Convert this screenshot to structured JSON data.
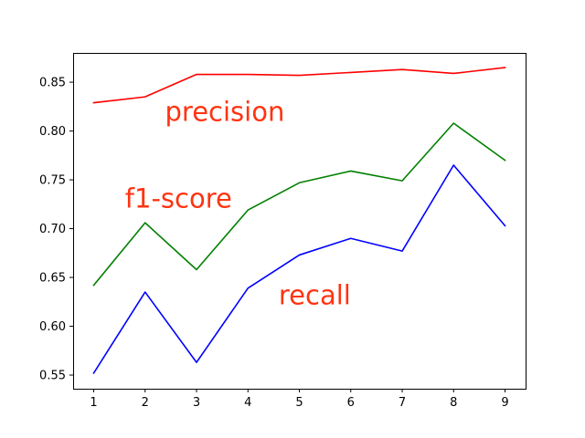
{
  "chart_data": {
    "type": "line",
    "title": "",
    "xlabel": "",
    "ylabel": "",
    "x": [
      1,
      2,
      3,
      4,
      5,
      6,
      7,
      8,
      9
    ],
    "xlim": [
      0.6,
      9.4
    ],
    "ylim": [
      0.536,
      0.88
    ],
    "xticks": [
      1,
      2,
      3,
      4,
      5,
      6,
      7,
      8,
      9
    ],
    "xtick_labels": [
      "1",
      "2",
      "3",
      "4",
      "5",
      "6",
      "7",
      "8",
      "9"
    ],
    "yticks": [
      0.55,
      0.6,
      0.65,
      0.7,
      0.75,
      0.8,
      0.85
    ],
    "ytick_labels": [
      "0.55",
      "0.60",
      "0.65",
      "0.70",
      "0.75",
      "0.80",
      "0.85"
    ],
    "grid": false,
    "legend": "none",
    "series": [
      {
        "color": "#ff0000",
        "values": [
          0.829,
          0.835,
          0.858,
          0.858,
          0.857,
          0.86,
          0.863,
          0.859,
          0.865
        ]
      },
      {
        "color": "#008000",
        "values": [
          0.642,
          0.706,
          0.658,
          0.719,
          0.747,
          0.759,
          0.749,
          0.808,
          0.77
        ]
      },
      {
        "color": "#0000ff",
        "values": [
          0.552,
          0.635,
          0.563,
          0.639,
          0.673,
          0.69,
          0.677,
          0.765,
          0.703
        ]
      }
    ],
    "annotations": [
      {
        "text": "precision",
        "x": 3.55,
        "y": 0.818,
        "color": "#ff3311"
      },
      {
        "text": "f1-score",
        "x": 2.65,
        "y": 0.729,
        "color": "#ff3311"
      },
      {
        "text": "recall",
        "x": 5.3,
        "y": 0.63,
        "color": "#ff3311"
      }
    ]
  }
}
